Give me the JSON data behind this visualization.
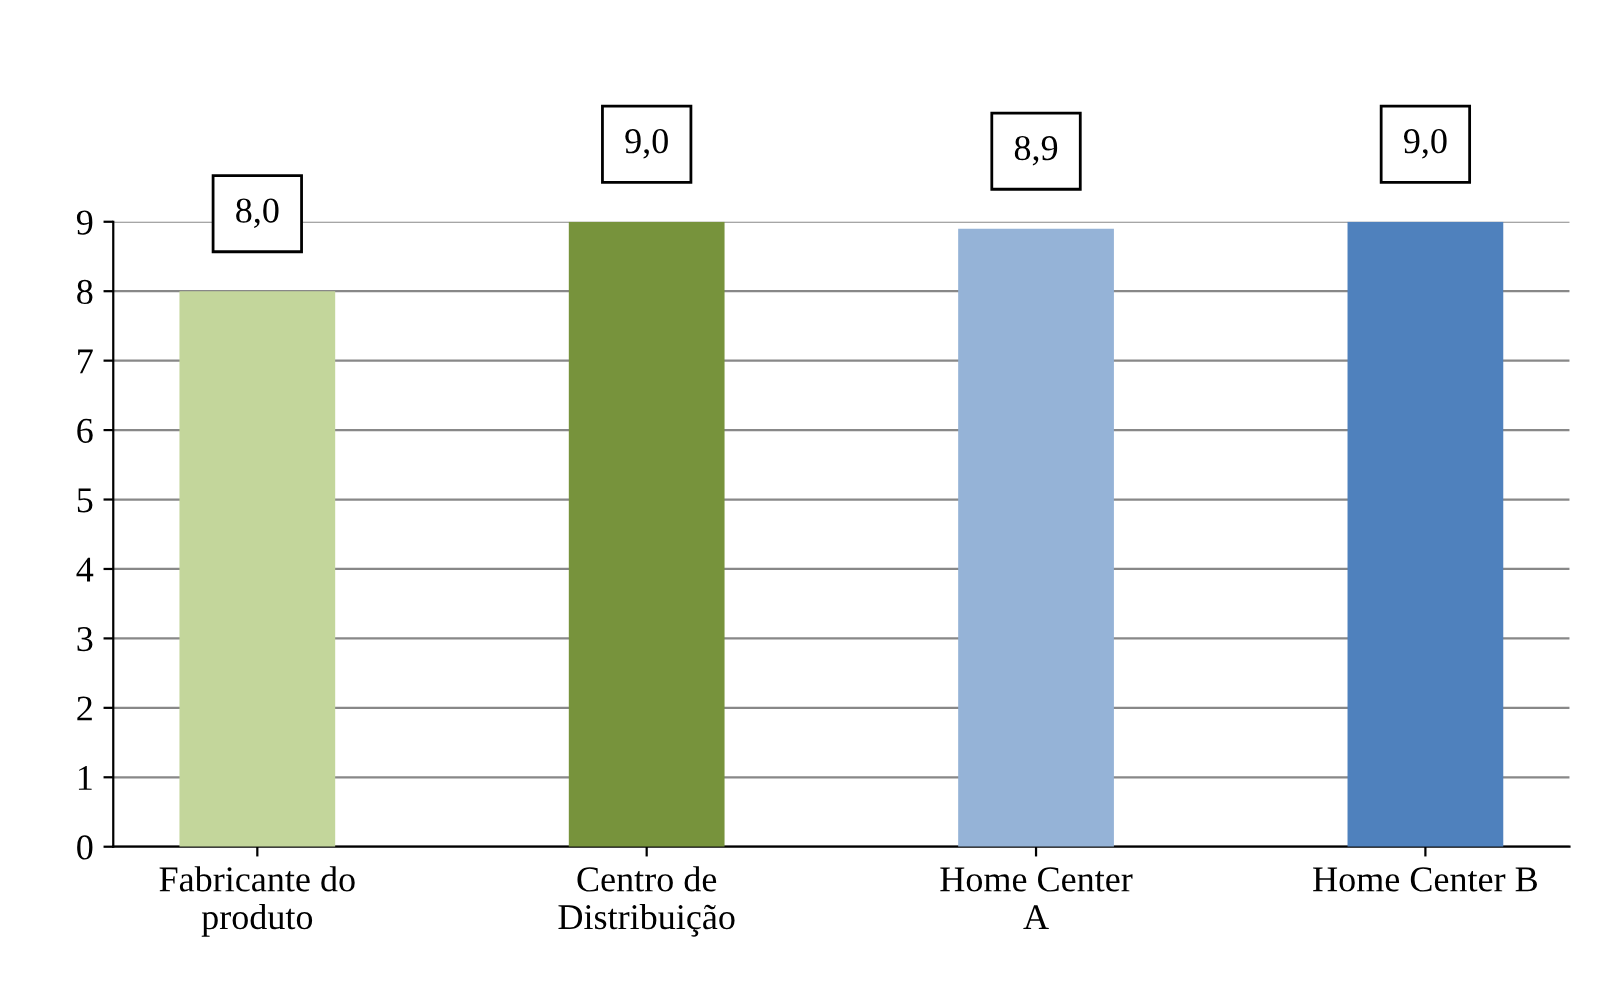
{
  "chart_data": {
    "type": "bar",
    "categories": [
      "Fabricante do\nproduto",
      "Centro de\nDistribuição",
      "Home Center\nA",
      "Home Center B"
    ],
    "values": [
      8.0,
      9.0,
      8.9,
      9.0
    ],
    "colors": [
      "#c3d69b",
      "#77933c",
      "#95b3d7",
      "#4f81bd"
    ],
    "value_labels": [
      "8,0",
      "9,0",
      "8,9",
      "9,0"
    ],
    "ylim": [
      0,
      9
    ],
    "yticks": [
      0,
      1,
      2,
      3,
      4,
      5,
      6,
      7,
      8,
      9
    ],
    "grid": "y"
  }
}
